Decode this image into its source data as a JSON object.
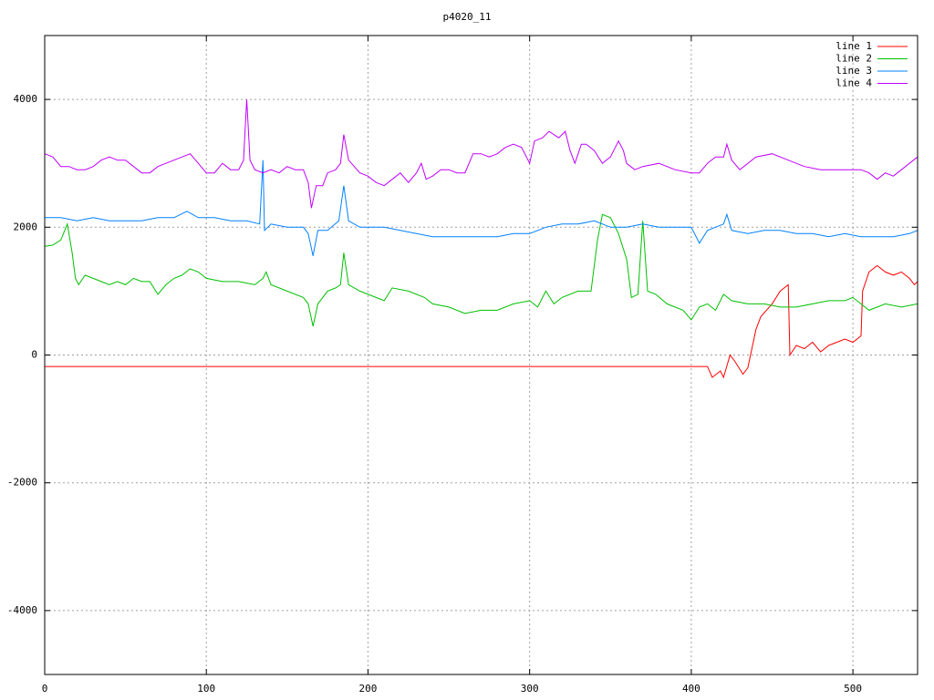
{
  "chart_data": {
    "type": "line",
    "title": "p4020_11",
    "xlim": [
      0,
      540
    ],
    "xticks": [
      0,
      100,
      200,
      300,
      400,
      500
    ],
    "ylim": [
      -5000,
      5000
    ],
    "yticks": [
      -4000,
      -2000,
      0,
      2000,
      4000
    ],
    "grid": true,
    "legend": "top-right",
    "series": [
      {
        "name": "line 1",
        "color": "#ff0000",
        "x": [
          0,
          410,
          413,
          418,
          420,
          424,
          427,
          432,
          435,
          440,
          443,
          450,
          455,
          460,
          461,
          465,
          470,
          475,
          480,
          485,
          490,
          495,
          500,
          505,
          506,
          510,
          515,
          520,
          525,
          530,
          535,
          538,
          540
        ],
        "values": [
          -180,
          -180,
          -350,
          -250,
          -350,
          0,
          -100,
          -300,
          -200,
          400,
          600,
          800,
          1000,
          1100,
          0,
          150,
          100,
          200,
          50,
          150,
          200,
          250,
          200,
          300,
          1000,
          1300,
          1400,
          1300,
          1250,
          1300,
          1200,
          1100,
          1150
        ]
      },
      {
        "name": "line 2",
        "color": "#00c000",
        "x": [
          0,
          5,
          10,
          14,
          17,
          19,
          21,
          25,
          30,
          35,
          40,
          45,
          50,
          55,
          60,
          65,
          70,
          75,
          80,
          85,
          90,
          95,
          100,
          110,
          120,
          130,
          135,
          137,
          140,
          150,
          160,
          163,
          166,
          169,
          175,
          180,
          183,
          185,
          188,
          195,
          200,
          210,
          215,
          225,
          235,
          240,
          250,
          260,
          270,
          280,
          290,
          300,
          305,
          310,
          315,
          320,
          330,
          338,
          342,
          345,
          350,
          355,
          360,
          363,
          367,
          370,
          373,
          378,
          385,
          395,
          400,
          405,
          410,
          415,
          420,
          425,
          435,
          445,
          455,
          465,
          475,
          485,
          495,
          500,
          505,
          510,
          520,
          530,
          540
        ],
        "values": [
          1700,
          1720,
          1800,
          2050,
          1600,
          1200,
          1100,
          1250,
          1200,
          1150,
          1100,
          1150,
          1100,
          1200,
          1150,
          1150,
          950,
          1100,
          1200,
          1250,
          1350,
          1300,
          1200,
          1150,
          1150,
          1100,
          1200,
          1300,
          1100,
          1000,
          900,
          800,
          450,
          800,
          1000,
          1050,
          1100,
          1600,
          1100,
          1000,
          950,
          850,
          1050,
          1000,
          900,
          800,
          750,
          650,
          700,
          700,
          800,
          850,
          750,
          1000,
          800,
          900,
          1000,
          1000,
          1800,
          2200,
          2150,
          1900,
          1500,
          900,
          950,
          2100,
          1000,
          950,
          800,
          700,
          550,
          750,
          800,
          700,
          950,
          850,
          800,
          800,
          750,
          750,
          800,
          850,
          850,
          900,
          800,
          700,
          800,
          750,
          800
        ]
      },
      {
        "name": "line 3",
        "color": "#0080ff",
        "x": [
          0,
          10,
          20,
          30,
          40,
          50,
          60,
          70,
          80,
          88,
          95,
          105,
          115,
          125,
          133,
          135,
          136,
          140,
          150,
          160,
          163,
          166,
          169,
          175,
          182,
          185,
          188,
          195,
          210,
          220,
          230,
          240,
          250,
          260,
          270,
          280,
          290,
          300,
          310,
          320,
          330,
          340,
          350,
          360,
          370,
          380,
          390,
          400,
          405,
          410,
          420,
          422,
          425,
          435,
          445,
          455,
          465,
          475,
          485,
          495,
          505,
          515,
          525,
          535,
          540
        ],
        "values": [
          2150,
          2150,
          2100,
          2150,
          2100,
          2100,
          2100,
          2150,
          2150,
          2250,
          2150,
          2150,
          2100,
          2100,
          2050,
          3050,
          1950,
          2050,
          2000,
          2000,
          1900,
          1550,
          1950,
          1950,
          2100,
          2650,
          2100,
          2000,
          2000,
          1950,
          1900,
          1850,
          1850,
          1850,
          1850,
          1850,
          1900,
          1900,
          2000,
          2050,
          2050,
          2100,
          2000,
          2000,
          2050,
          2000,
          2000,
          2000,
          1750,
          1950,
          2050,
          2200,
          1950,
          1900,
          1950,
          1950,
          1900,
          1900,
          1850,
          1900,
          1850,
          1850,
          1850,
          1900,
          1950
        ]
      },
      {
        "name": "line 4",
        "color": "#c000ff",
        "x": [
          0,
          5,
          10,
          15,
          20,
          25,
          30,
          35,
          40,
          45,
          50,
          55,
          60,
          65,
          70,
          75,
          80,
          85,
          90,
          95,
          100,
          105,
          110,
          115,
          120,
          123,
          125,
          127,
          130,
          135,
          140,
          145,
          150,
          155,
          160,
          163,
          165,
          168,
          172,
          175,
          180,
          183,
          185,
          188,
          195,
          200,
          205,
          210,
          215,
          220,
          225,
          230,
          233,
          236,
          240,
          245,
          250,
          255,
          260,
          265,
          270,
          275,
          280,
          285,
          290,
          295,
          300,
          303,
          308,
          312,
          318,
          322,
          325,
          328,
          332,
          335,
          340,
          345,
          350,
          355,
          358,
          360,
          365,
          370,
          380,
          390,
          400,
          405,
          410,
          415,
          420,
          422,
          425,
          430,
          440,
          450,
          460,
          470,
          480,
          490,
          500,
          505,
          510,
          515,
          520,
          525,
          530,
          535,
          540
        ],
        "values": [
          3150,
          3100,
          2950,
          2950,
          2900,
          2900,
          2950,
          3050,
          3100,
          3050,
          3050,
          2950,
          2850,
          2850,
          2950,
          3000,
          3050,
          3100,
          3150,
          3000,
          2850,
          2850,
          3000,
          2900,
          2900,
          3050,
          4000,
          3050,
          2900,
          2850,
          2900,
          2850,
          2950,
          2900,
          2900,
          2700,
          2300,
          2650,
          2650,
          2850,
          2900,
          3000,
          3450,
          3050,
          2850,
          2800,
          2700,
          2650,
          2750,
          2850,
          2700,
          2850,
          3000,
          2750,
          2800,
          2900,
          2900,
          2850,
          2850,
          3150,
          3150,
          3100,
          3150,
          3250,
          3300,
          3250,
          3000,
          3350,
          3400,
          3500,
          3400,
          3500,
          3200,
          3000,
          3300,
          3300,
          3200,
          3000,
          3100,
          3350,
          3200,
          3000,
          2900,
          2950,
          3000,
          2900,
          2850,
          2850,
          3000,
          3100,
          3100,
          3300,
          3050,
          2900,
          3100,
          3150,
          3050,
          2950,
          2900,
          2900,
          2900,
          2900,
          2850,
          2750,
          2850,
          2800,
          2900,
          3000,
          3100
        ]
      }
    ]
  }
}
